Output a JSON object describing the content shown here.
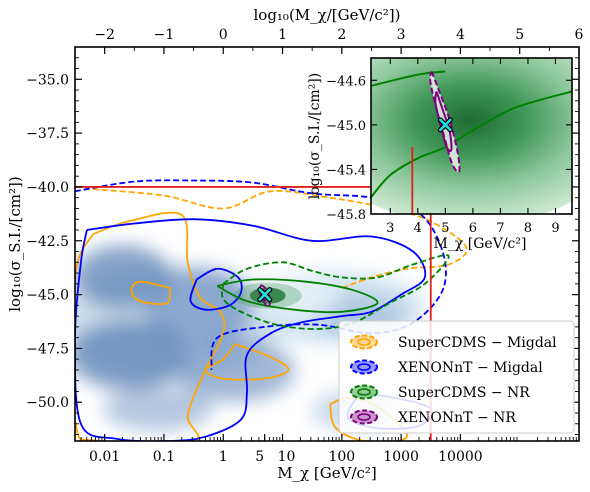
{
  "chart_data": [
    {
      "type": "contour",
      "x_bottom": {
        "label": "M_χ [GeV/c²]",
        "scale": "log",
        "range_log10": [
          -2.5,
          6.0
        ],
        "ticks": [
          {
            "log10": -2,
            "label": "0.01"
          },
          {
            "log10": -1,
            "label": "0.1"
          },
          {
            "log10": 0,
            "label": "1"
          },
          {
            "log10": 0.699,
            "label": "5"
          },
          {
            "log10": 1,
            "label": "10"
          },
          {
            "log10": 2,
            "label": "100"
          },
          {
            "log10": 3,
            "label": "1000"
          },
          {
            "log10": 4,
            "label": "10000"
          }
        ]
      },
      "x_top": {
        "label": "log₁₀(M_χ/[GeV/c²])",
        "range": [
          -2.5,
          6.0
        ],
        "ticks": [
          {
            "value": -2,
            "label": "−2"
          },
          {
            "value": -1,
            "label": "−1"
          },
          {
            "value": 0,
            "label": "0"
          },
          {
            "value": 1,
            "label": "1"
          },
          {
            "value": 2,
            "label": "2"
          },
          {
            "value": 3,
            "label": "3"
          },
          {
            "value": 4,
            "label": "4"
          },
          {
            "value": 5,
            "label": "5"
          },
          {
            "value": 6,
            "label": "6"
          }
        ]
      },
      "y": {
        "label": "log₁₀(σ_S.I./[cm²])",
        "range": [
          -51.8,
          -33.5
        ],
        "ticks": [
          {
            "value": -35.0,
            "label": "−35.0"
          },
          {
            "value": -37.5,
            "label": "−37.5"
          },
          {
            "value": -40.0,
            "label": "−40.0"
          },
          {
            "value": -42.5,
            "label": "−42.5"
          },
          {
            "value": -45.0,
            "label": "−45.0"
          },
          {
            "value": -47.5,
            "label": "−47.5"
          },
          {
            "value": -50.0,
            "label": "−50.0"
          }
        ]
      },
      "benchmark": {
        "log10_mass": 0.7,
        "log10_sigma": -45.0
      },
      "prior_box": {
        "log10_mass_max": 3.5,
        "log10_sigma_max": -40.0,
        "color": "#e0201b"
      },
      "series": [
        {
          "name": "SuperCDMS − Migdal",
          "color": "#ffa500"
        },
        {
          "name": "XENONnT − Migdal",
          "color": "#0000ff"
        },
        {
          "name": "SuperCDMS − NR",
          "color": "#008000"
        },
        {
          "name": "XENONnT − NR",
          "color": "#800080"
        }
      ],
      "contours": [
        {
          "series": 0,
          "style": "dashed",
          "level": "95%",
          "points": [
            [
              -2.2,
              -40.1
            ],
            [
              -1,
              -40.4
            ],
            [
              0,
              -41
            ],
            [
              0.8,
              -40.2
            ],
            [
              1.8,
              -40.5
            ],
            [
              2.8,
              -41
            ],
            [
              3.5,
              -41.6
            ],
            [
              4.1,
              -42.8
            ],
            [
              3.8,
              -43.6
            ],
            [
              3.1,
              -43.8
            ],
            [
              2.5,
              -44.2
            ],
            [
              2.0,
              -44.7
            ]
          ]
        },
        {
          "series": 0,
          "style": "solid",
          "level": "68%",
          "points": [
            [
              -2.2,
              -42.2
            ],
            [
              -1.6,
              -41.6
            ],
            [
              -0.7,
              -41.3
            ],
            [
              -0.6,
              -43.5
            ],
            [
              -0.4,
              -45.1
            ],
            [
              -0.05,
              -45.8
            ],
            [
              0,
              -46.8
            ],
            [
              -0.3,
              -48.5
            ],
            [
              -0.6,
              -50.6
            ],
            [
              -0.5,
              -51.8
            ],
            [
              -2.1,
              -51.8
            ],
            [
              -2.5,
              -50.8
            ],
            [
              -2.5,
              -44.2
            ],
            [
              -2.2,
              -42.2
            ]
          ]
        },
        {
          "series": 0,
          "style": "solid",
          "level": "68%",
          "points": [
            [
              -0.9,
              -44.7
            ],
            [
              -1.4,
              -44.4
            ],
            [
              -1.55,
              -44.8
            ],
            [
              -1.4,
              -45.3
            ],
            [
              -0.95,
              -45.4
            ],
            [
              -0.9,
              -44.7
            ]
          ]
        },
        {
          "series": 0,
          "style": "solid",
          "level": "68%",
          "points": [
            [
              0.2,
              -47.3
            ],
            [
              0.8,
              -47.9
            ],
            [
              1.1,
              -48.5
            ],
            [
              0.7,
              -48.9
            ],
            [
              0,
              -48.9
            ],
            [
              -0.3,
              -48.5
            ],
            [
              0,
              -48.0
            ],
            [
              0.2,
              -47.3
            ]
          ]
        },
        {
          "series": 0,
          "style": "solid",
          "level": "68%",
          "points": [
            [
              1.8,
              -50.1
            ],
            [
              2.1,
              -49.8
            ],
            [
              2.6,
              -50.2
            ],
            [
              3.1,
              -51.6
            ],
            [
              2.4,
              -51.8
            ],
            [
              1.9,
              -51.2
            ],
            [
              1.8,
              -50.1
            ]
          ]
        },
        {
          "series": 1,
          "style": "dashed",
          "level": "95%",
          "points": [
            [
              -2.5,
              -40.2
            ],
            [
              -1.5,
              -39.75
            ],
            [
              -0.5,
              -39.7
            ],
            [
              0.5,
              -39.8
            ],
            [
              1.5,
              -40.3
            ],
            [
              2.5,
              -40.5
            ],
            [
              3.3,
              -41.2
            ],
            [
              3.7,
              -43.0
            ],
            [
              3.7,
              -44.8
            ],
            [
              3.2,
              -46.3
            ],
            [
              2.5,
              -46.8
            ],
            [
              1.6,
              -46.4
            ],
            [
              0.7,
              -46.5
            ],
            [
              -0.1,
              -47.0
            ],
            [
              -0.2,
              -48.5
            ]
          ]
        },
        {
          "series": 1,
          "style": "solid",
          "level": "68%",
          "points": [
            [
              -2.3,
              -42.0
            ],
            [
              -1.5,
              -41.7
            ],
            [
              -0.5,
              -41.5
            ],
            [
              0.5,
              -41.8
            ],
            [
              1.5,
              -42.5
            ],
            [
              2.5,
              -42.3
            ],
            [
              3.2,
              -43.0
            ],
            [
              3.4,
              -44.2
            ],
            [
              3.0,
              -45.0
            ],
            [
              2.5,
              -45.8
            ],
            [
              2.0,
              -46.0
            ],
            [
              1.3,
              -46.3
            ],
            [
              0.8,
              -46.8
            ],
            [
              0.4,
              -47.8
            ],
            [
              0.4,
              -49.5
            ],
            [
              0.3,
              -50.8
            ],
            [
              -0.3,
              -51.6
            ],
            [
              -0.9,
              -51.8
            ],
            [
              -1.8,
              -51.7
            ],
            [
              -2.4,
              -51.0
            ],
            [
              -2.5,
              -47.0
            ],
            [
              -2.4,
              -43.5
            ],
            [
              -2.3,
              -42.0
            ]
          ]
        },
        {
          "series": 1,
          "style": "solid",
          "level": "68%",
          "points": [
            [
              2.3,
              -49.6
            ],
            [
              2.9,
              -49.8
            ],
            [
              3.5,
              -50.3
            ],
            [
              3.3,
              -51.1
            ],
            [
              2.6,
              -51.2
            ],
            [
              2.1,
              -50.7
            ],
            [
              2.3,
              -49.6
            ]
          ]
        },
        {
          "series": 1,
          "style": "solid",
          "level": "68%",
          "points": [
            [
              -0.45,
              -44.3
            ],
            [
              -0.1,
              -43.8
            ],
            [
              0.25,
              -44.2
            ],
            [
              0.3,
              -44.9
            ],
            [
              0.1,
              -45.5
            ],
            [
              -0.3,
              -45.7
            ],
            [
              -0.55,
              -45.3
            ],
            [
              -0.45,
              -44.3
            ]
          ]
        },
        {
          "series": 2,
          "style": "dashed",
          "level": "95%",
          "points": [
            [
              0,
              -44.5
            ],
            [
              0.4,
              -43.8
            ],
            [
              1.0,
              -43.5
            ],
            [
              1.5,
              -43.9
            ],
            [
              2.0,
              -44.2
            ],
            [
              2.6,
              -44.2
            ],
            [
              3.2,
              -43.6
            ],
            [
              3.8,
              -43.2
            ],
            [
              3.4,
              -44.5
            ],
            [
              2.8,
              -45.4
            ],
            [
              2.2,
              -46.3
            ],
            [
              1.6,
              -46.6
            ],
            [
              0.9,
              -46.4
            ],
            [
              0.3,
              -45.8
            ],
            [
              0,
              -45.2
            ],
            [
              0,
              -44.5
            ]
          ]
        },
        {
          "series": 2,
          "style": "solid",
          "level": "68%",
          "points": [
            [
              -0.1,
              -44.6
            ],
            [
              0.5,
              -44.3
            ],
            [
              1.4,
              -44.4
            ],
            [
              2.2,
              -44.8
            ],
            [
              2.6,
              -45.4
            ],
            [
              2.0,
              -45.8
            ],
            [
              1.2,
              -45.7
            ],
            [
              0.4,
              -45.3
            ],
            [
              -0.1,
              -44.6
            ]
          ]
        },
        {
          "series": 3,
          "style": "dashed",
          "level": "95%",
          "points": [
            [
              0.64,
              -44.55
            ],
            [
              0.74,
              -44.8
            ],
            [
              0.79,
              -45.35
            ],
            [
              0.74,
              -45.55
            ],
            [
              0.66,
              -45.2
            ],
            [
              0.61,
              -44.85
            ],
            [
              0.64,
              -44.55
            ]
          ]
        },
        {
          "series": 3,
          "style": "solid",
          "level": "68%",
          "points": [
            [
              0.66,
              -44.75
            ],
            [
              0.72,
              -44.95
            ],
            [
              0.73,
              -45.2
            ],
            [
              0.69,
              -45.25
            ],
            [
              0.66,
              -45.0
            ],
            [
              0.66,
              -44.75
            ]
          ]
        }
      ]
    },
    {
      "type": "contour",
      "role": "inset",
      "x": {
        "label": "M_χ [GeV/c²]",
        "range": [
          2.3,
          9.6
        ],
        "ticks": [
          3,
          4,
          5,
          6,
          7,
          8,
          9
        ]
      },
      "y": {
        "label": "log₁₀(σ_S.I./[cm²])",
        "range": [
          -45.8,
          -44.4
        ],
        "ticks": [
          {
            "value": -44.6,
            "label": "−44.6"
          },
          {
            "value": -45.0,
            "label": "−45.0"
          },
          {
            "value": -45.4,
            "label": "−45.4"
          },
          {
            "value": -45.8,
            "label": "−45.8"
          }
        ]
      },
      "benchmark": {
        "mass": 5.0,
        "log10_sigma": -45.0
      },
      "red_vertical_line_mass": 3.8,
      "contours": [
        {
          "series": 2,
          "style": "solid",
          "points": [
            [
              2.3,
              -45.65
            ],
            [
              3,
              -45.45
            ],
            [
              4,
              -45.3
            ],
            [
              5,
              -45.2
            ],
            [
              6,
              -45.05
            ],
            [
              7.5,
              -44.85
            ],
            [
              9.6,
              -44.7
            ]
          ]
        },
        {
          "series": 2,
          "style": "solid",
          "points": [
            [
              2.3,
              -44.65
            ],
            [
              4,
              -44.55
            ],
            [
              5,
              -44.52
            ]
          ]
        },
        {
          "series": 3,
          "style": "dashed",
          "points": [
            [
              4.5,
              -44.52
            ],
            [
              4.75,
              -44.68
            ],
            [
              5.15,
              -44.95
            ],
            [
              5.45,
              -45.25
            ],
            [
              5.5,
              -45.42
            ],
            [
              5.25,
              -45.35
            ],
            [
              4.95,
              -45.1
            ],
            [
              4.62,
              -44.8
            ],
            [
              4.45,
              -44.6
            ],
            [
              4.5,
              -44.52
            ]
          ]
        },
        {
          "series": 3,
          "style": "solid",
          "points": [
            [
              4.68,
              -44.7
            ],
            [
              4.9,
              -44.86
            ],
            [
              5.15,
              -45.05
            ],
            [
              5.22,
              -45.22
            ],
            [
              5.05,
              -45.2
            ],
            [
              4.82,
              -45.0
            ],
            [
              4.64,
              -44.8
            ],
            [
              4.68,
              -44.7
            ]
          ]
        }
      ]
    }
  ]
}
